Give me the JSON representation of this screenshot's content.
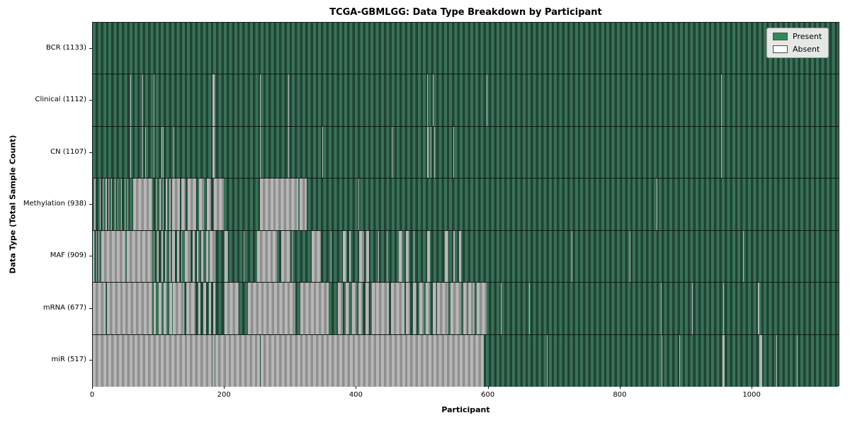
{
  "title": "TCGA-GBMLGG: Data Type Breakdown by Participant",
  "xlabel": "Participant",
  "ylabel": "Data Type (Total Sample Count)",
  "legend": {
    "present_label": "Present",
    "absent_label": "Absent"
  },
  "colors": {
    "present_swatch": "#2e8b57",
    "absent_swatch": "#fdfdfd",
    "present_stripe_light": "#3a7158",
    "present_stripe_dark": "#1f4434",
    "absent_stripe_light": "#b6b7b6",
    "absent_stripe_dark": "#8e8f8e",
    "legend_bg": "#e6e8e6",
    "axis": "#1a1a1a"
  },
  "chart_data": {
    "type": "heatmap",
    "title": "TCGA-GBMLGG: Data Type Breakdown by Participant",
    "xlabel": "Participant",
    "ylabel": "Data Type (Total Sample Count)",
    "x_min": 0,
    "x_max": 1133,
    "x_ticks": [
      0,
      200,
      400,
      600,
      800,
      1000
    ],
    "legend_entries": [
      "Present",
      "Absent"
    ],
    "legend_position": "upper right",
    "cell_values": "present=1 absent=0; absent_ranges are [start,end) participant indices, all other participants present",
    "rows": [
      {
        "label": "BCR (1133)",
        "name": "BCR",
        "total_samples": 1133,
        "absent_ranges": []
      },
      {
        "label": "Clinical (1112)",
        "name": "Clinical",
        "total_samples": 1112,
        "absent_ranges": [
          [
            57,
            58
          ],
          [
            75,
            76
          ],
          [
            93,
            94
          ],
          [
            182,
            185
          ],
          [
            254,
            255
          ],
          [
            297,
            298
          ],
          [
            417,
            418
          ],
          [
            508,
            509
          ],
          [
            516,
            517
          ],
          [
            598,
            599
          ],
          [
            954,
            955
          ]
        ]
      },
      {
        "label": "CN (1107)",
        "name": "CN",
        "total_samples": 1107,
        "absent_ranges": [
          [
            57,
            58
          ],
          [
            75,
            76
          ],
          [
            80,
            81
          ],
          [
            93,
            94
          ],
          [
            104,
            105
          ],
          [
            107,
            108
          ],
          [
            123,
            124
          ],
          [
            182,
            185
          ],
          [
            254,
            255
          ],
          [
            297,
            298
          ],
          [
            349,
            350
          ],
          [
            417,
            418
          ],
          [
            454,
            455
          ],
          [
            508,
            510
          ],
          [
            513,
            514
          ],
          [
            519,
            520
          ],
          [
            548,
            549
          ],
          [
            885,
            886
          ],
          [
            954,
            955
          ]
        ]
      },
      {
        "label": "Methylation (938)",
        "name": "Methylation",
        "total_samples": 938,
        "absent_ranges": [
          [
            2,
            4
          ],
          [
            7,
            8
          ],
          [
            11,
            12
          ],
          [
            15,
            16
          ],
          [
            19,
            21
          ],
          [
            24,
            25
          ],
          [
            28,
            29
          ],
          [
            33,
            34
          ],
          [
            38,
            39
          ],
          [
            43,
            44
          ],
          [
            48,
            49
          ],
          [
            53,
            54
          ],
          [
            61,
            90
          ],
          [
            96,
            97
          ],
          [
            101,
            103
          ],
          [
            106,
            108
          ],
          [
            111,
            113
          ],
          [
            116,
            118
          ],
          [
            120,
            132
          ],
          [
            135,
            141
          ],
          [
            144,
            157
          ],
          [
            161,
            169
          ],
          [
            173,
            180
          ],
          [
            184,
            199
          ],
          [
            254,
            312
          ],
          [
            314,
            325
          ],
          [
            404,
            405
          ],
          [
            857,
            858
          ]
        ]
      },
      {
        "label": "MAF (909)",
        "name": "MAF",
        "total_samples": 909,
        "absent_ranges": [
          [
            0,
            2
          ],
          [
            5,
            6
          ],
          [
            9,
            10
          ],
          [
            13,
            50
          ],
          [
            52,
            90
          ],
          [
            92,
            94
          ],
          [
            98,
            100
          ],
          [
            104,
            106
          ],
          [
            110,
            112
          ],
          [
            116,
            118
          ],
          [
            120,
            125
          ],
          [
            128,
            131
          ],
          [
            134,
            136
          ],
          [
            140,
            148
          ],
          [
            152,
            155
          ],
          [
            158,
            160
          ],
          [
            165,
            168
          ],
          [
            172,
            175
          ],
          [
            178,
            186
          ],
          [
            200,
            206
          ],
          [
            229,
            230
          ],
          [
            250,
            280
          ],
          [
            286,
            300
          ],
          [
            302,
            303
          ],
          [
            333,
            347
          ],
          [
            362,
            363
          ],
          [
            380,
            385
          ],
          [
            390,
            392
          ],
          [
            405,
            412
          ],
          [
            415,
            420
          ],
          [
            434,
            435
          ],
          [
            446,
            448
          ],
          [
            465,
            470
          ],
          [
            476,
            480
          ],
          [
            487,
            488
          ],
          [
            508,
            512
          ],
          [
            535,
            540
          ],
          [
            548,
            550
          ],
          [
            556,
            560
          ],
          [
            727,
            728
          ],
          [
            816,
            817
          ],
          [
            988,
            989
          ]
        ]
      },
      {
        "label": "mRNA (677)",
        "name": "mRNA",
        "total_samples": 677,
        "absent_ranges": [
          [
            0,
            19
          ],
          [
            21,
            90
          ],
          [
            92,
            96
          ],
          [
            100,
            104
          ],
          [
            108,
            112
          ],
          [
            116,
            120
          ],
          [
            122,
            139
          ],
          [
            142,
            150
          ],
          [
            150,
            156
          ],
          [
            160,
            164
          ],
          [
            168,
            172
          ],
          [
            176,
            180
          ],
          [
            183,
            186
          ],
          [
            200,
            222
          ],
          [
            236,
            308
          ],
          [
            315,
            358
          ],
          [
            372,
            380
          ],
          [
            384,
            390
          ],
          [
            394,
            400
          ],
          [
            404,
            410
          ],
          [
            414,
            420
          ],
          [
            424,
            430
          ],
          [
            430,
            450
          ],
          [
            453,
            473
          ],
          [
            476,
            482
          ],
          [
            486,
            492
          ],
          [
            496,
            502
          ],
          [
            506,
            512
          ],
          [
            516,
            522
          ],
          [
            523,
            540
          ],
          [
            543,
            560
          ],
          [
            563,
            569
          ],
          [
            570,
            580
          ],
          [
            583,
            598
          ],
          [
            620,
            621
          ],
          [
            663,
            664
          ],
          [
            863,
            864
          ],
          [
            910,
            911
          ],
          [
            958,
            959
          ],
          [
            1010,
            1012
          ]
        ]
      },
      {
        "label": "miR (517)",
        "name": "miR",
        "total_samples": 517,
        "absent_ranges": [
          [
            0,
            185
          ],
          [
            186,
            254
          ],
          [
            255,
            594
          ],
          [
            644,
            645
          ],
          [
            690,
            691
          ],
          [
            864,
            865
          ],
          [
            891,
            892
          ],
          [
            941,
            942
          ],
          [
            957,
            960
          ],
          [
            1012,
            1017
          ],
          [
            1038,
            1039
          ],
          [
            1070,
            1071
          ]
        ]
      }
    ]
  }
}
